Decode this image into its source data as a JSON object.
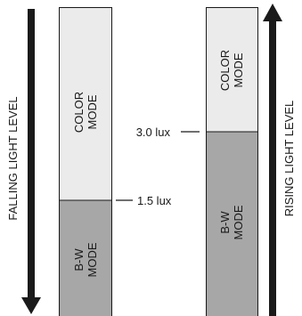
{
  "left_arrow_label": "FALLING LIGHT LEVEL",
  "right_arrow_label": "RISING LIGHT LEVEL",
  "left_bar": {
    "color_mode_label": [
      "COLOR",
      "MODE"
    ],
    "bw_mode_label": [
      "B-W",
      "MODE"
    ],
    "threshold_label": "1.5 lux"
  },
  "right_bar": {
    "color_mode_label": [
      "COLOR",
      "MODE"
    ],
    "bw_mode_label": [
      "B-W",
      "MODE"
    ],
    "threshold_label": "3.0 lux"
  },
  "colors": {
    "color_mode_fill": "#ebebeb",
    "bw_mode_fill": "#a7a7a7",
    "arrow": "#1a1a1a",
    "outline": "#1a1a1a"
  }
}
